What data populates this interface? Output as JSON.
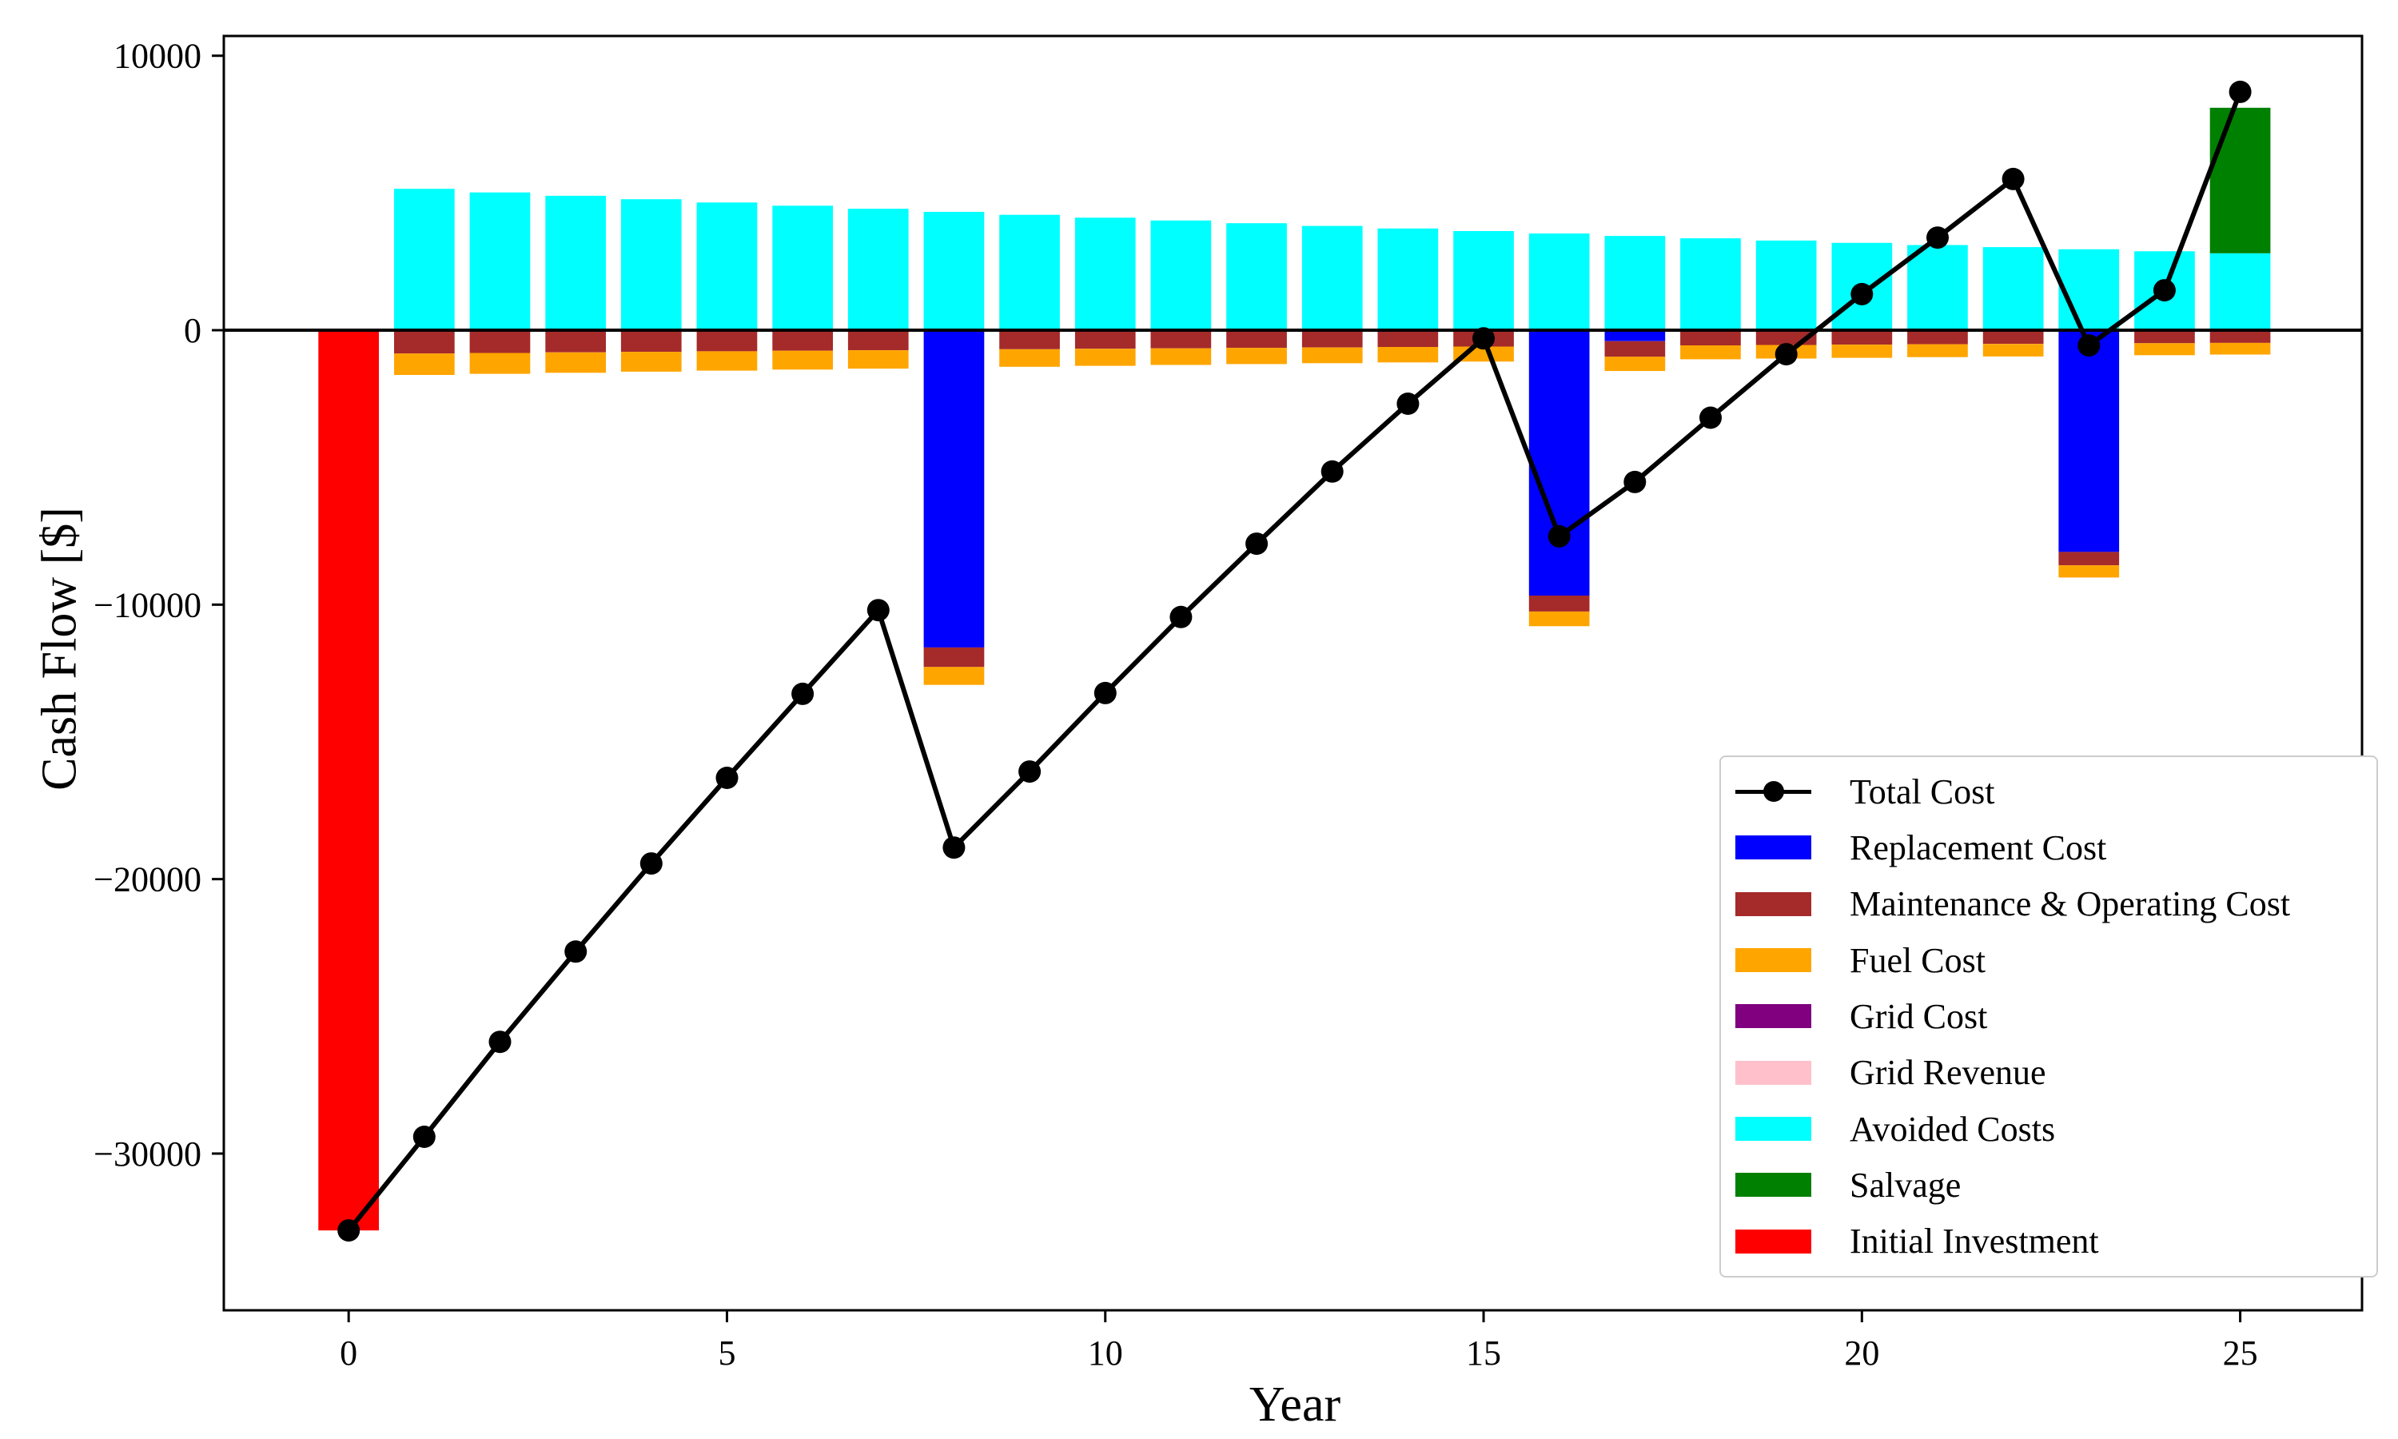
{
  "axes": {
    "xlabel": "Year",
    "ylabel": "Cash Flow [$]"
  },
  "legend": {
    "items": [
      {
        "label": "Total Cost",
        "color": "#000000",
        "type": "line-marker"
      },
      {
        "label": "Replacement Cost",
        "color": "#0000ff",
        "type": "patch"
      },
      {
        "label": "Maintenance & Operating Cost",
        "color": "#a52a2a",
        "type": "patch"
      },
      {
        "label": "Fuel Cost",
        "color": "#ffa500",
        "type": "patch"
      },
      {
        "label": "Grid Cost",
        "color": "#800080",
        "type": "patch"
      },
      {
        "label": "Grid Revenue",
        "color": "#ffc0cb",
        "type": "patch"
      },
      {
        "label": "Avoided Costs",
        "color": "#00ffff",
        "type": "patch"
      },
      {
        "label": "Salvage",
        "color": "#008000",
        "type": "patch"
      },
      {
        "label": "Initial Investment",
        "color": "#ff0000",
        "type": "patch"
      }
    ]
  },
  "chart_data": {
    "type": "bar",
    "subtype": "stacked-bars-with-cumulative-line",
    "title": "",
    "xlabel": "Year",
    "ylabel": "Cash Flow [$]",
    "x": [
      0,
      1,
      2,
      3,
      4,
      5,
      6,
      7,
      8,
      9,
      10,
      11,
      12,
      13,
      14,
      15,
      16,
      17,
      18,
      19,
      20,
      21,
      22,
      23,
      24,
      25
    ],
    "xlim": [
      -1.65,
      26.61
    ],
    "ylim": [
      -35710,
      10720
    ],
    "grid": false,
    "legend_position": "lower-right-inside",
    "zero_line": true,
    "bar_width_years": 0.8,
    "xticks": {
      "values": [
        0,
        5,
        10,
        15,
        20,
        25
      ],
      "labels": [
        "0",
        "5",
        "10",
        "15",
        "20",
        "25"
      ]
    },
    "yticks": {
      "values": [
        10000,
        0,
        -10000,
        -20000,
        -30000
      ],
      "labels": [
        "10000",
        "0",
        "−10000",
        "−20000",
        "−30000"
      ]
    },
    "line_series": {
      "id": "total_cost",
      "name": "Total Cost",
      "color": "#000000",
      "marker": "circle",
      "values": [
        -32800,
        -29390,
        -25930,
        -22640,
        -19430,
        -16310,
        -13250,
        -10200,
        -18850,
        -16080,
        -13220,
        -10450,
        -7780,
        -5150,
        -2680,
        -300,
        -7510,
        -5530,
        -3190,
        -875,
        1315,
        3375,
        5510,
        -555,
        1455,
        8685
      ]
    },
    "bar_series": [
      {
        "id": "replacement",
        "name": "Replacement Cost",
        "color": "#0000ff",
        "values": [
          0,
          0,
          0,
          0,
          0,
          0,
          0,
          0,
          -11560,
          0,
          0,
          0,
          0,
          0,
          0,
          0,
          -9670,
          -400,
          0,
          0,
          0,
          0,
          0,
          -8080,
          0,
          0
        ]
      },
      {
        "id": "maintenance",
        "name": "Maintenance & Operating Cost",
        "color": "#a52a2a",
        "values": [
          0,
          -850,
          -829,
          -808,
          -788,
          -768,
          -749,
          -730,
          -712,
          -694,
          -677,
          -660,
          -643,
          -627,
          -611,
          -596,
          -581,
          -567,
          -553,
          -539,
          -525,
          -512,
          -499,
          -487,
          -475,
          -463
        ]
      },
      {
        "id": "fuel",
        "name": "Fuel Cost",
        "color": "#ffa500",
        "values": [
          0,
          -780,
          -761,
          -742,
          -723,
          -705,
          -687,
          -670,
          -653,
          -637,
          -621,
          -605,
          -590,
          -575,
          -561,
          -547,
          -533,
          -520,
          -507,
          -494,
          -482,
          -470,
          -458,
          -447,
          -436,
          -425
        ]
      },
      {
        "id": "grid_cost",
        "name": "Grid Cost",
        "color": "#800080",
        "values": [
          0,
          0,
          0,
          0,
          0,
          0,
          0,
          0,
          0,
          0,
          0,
          0,
          0,
          0,
          0,
          0,
          0,
          0,
          0,
          0,
          0,
          0,
          0,
          0,
          0,
          0
        ]
      },
      {
        "id": "grid_revenue",
        "name": "Grid Revenue",
        "color": "#ffc0cb",
        "values": [
          0,
          0,
          0,
          0,
          0,
          0,
          0,
          0,
          0,
          0,
          0,
          0,
          0,
          0,
          0,
          0,
          0,
          0,
          0,
          0,
          0,
          0,
          0,
          0,
          0,
          0
        ]
      },
      {
        "id": "avoided",
        "name": "Avoided Costs",
        "color": "#00ffff",
        "values": [
          0,
          5150,
          5021,
          4896,
          4773,
          4654,
          4537,
          4424,
          4313,
          4205,
          4100,
          3998,
          3898,
          3800,
          3705,
          3613,
          3522,
          3434,
          3348,
          3265,
          3183,
          3103,
          3026,
          2950,
          2876,
          2804
        ]
      },
      {
        "id": "salvage",
        "name": "Salvage",
        "color": "#008000",
        "values": [
          0,
          0,
          0,
          0,
          0,
          0,
          0,
          0,
          0,
          0,
          0,
          0,
          0,
          0,
          0,
          0,
          0,
          0,
          0,
          0,
          0,
          0,
          0,
          0,
          0,
          5300
        ]
      },
      {
        "id": "initial_investment",
        "name": "Initial Investment",
        "color": "#ff0000",
        "values": [
          -32800,
          0,
          0,
          0,
          0,
          0,
          0,
          0,
          0,
          0,
          0,
          0,
          0,
          0,
          0,
          0,
          0,
          0,
          0,
          0,
          0,
          0,
          0,
          0,
          0,
          0
        ]
      }
    ]
  }
}
